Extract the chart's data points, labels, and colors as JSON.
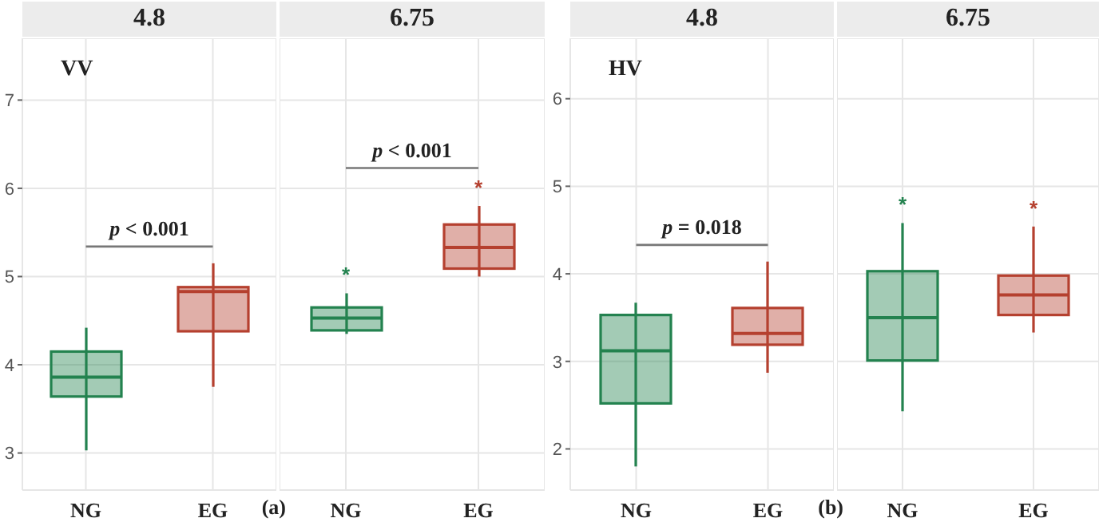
{
  "chart_data": [
    {
      "type": "box",
      "title": "4.8",
      "subtitle": "VV",
      "xlabel": "(a)",
      "categories": [
        "NG",
        "EG"
      ],
      "colors": [
        "#23824f",
        "#b5402f"
      ],
      "grid": true,
      "ylim": [
        2.58,
        7.7
      ],
      "yticks": [
        3,
        4,
        5,
        6,
        7
      ],
      "boxes": [
        {
          "low": 3.03,
          "q1": 3.64,
          "median": 3.86,
          "q3": 4.15,
          "high": 4.42
        },
        {
          "low": 3.75,
          "q1": 4.38,
          "median": 4.83,
          "q3": 4.88,
          "high": 5.15
        }
      ],
      "annotations": [
        "p < 0.001"
      ]
    },
    {
      "type": "box",
      "title": "6.75",
      "categories": [
        "NG",
        "EG"
      ],
      "colors": [
        "#23824f",
        "#b5402f"
      ],
      "grid": true,
      "ylim": [
        2.58,
        7.7
      ],
      "yticks": [
        3,
        4,
        5,
        6,
        7
      ],
      "tick_labels": "x",
      "boxes": [
        {
          "low": 4.35,
          "q1": 4.39,
          "median": 4.53,
          "q3": 4.65,
          "high": 4.81
        },
        {
          "low": 5.0,
          "q1": 5.09,
          "median": 5.33,
          "q3": 5.59,
          "high": 5.8
        }
      ],
      "annotations": [
        "*",
        "*",
        "p < 0.001"
      ]
    },
    {
      "type": "box",
      "title": "4.8",
      "subtitle": "HV",
      "xlabel": "(b)",
      "categories": [
        "NG",
        "EG"
      ],
      "colors": [
        "#23824f",
        "#b5402f"
      ],
      "grid": true,
      "ylim": [
        1.53,
        6.69
      ],
      "yticks": [
        2,
        3,
        4,
        5,
        6
      ],
      "boxes": [
        {
          "low": 1.8,
          "q1": 2.52,
          "median": 3.12,
          "q3": 3.53,
          "high": 3.67
        },
        {
          "low": 2.87,
          "q1": 3.19,
          "median": 3.32,
          "q3": 3.61,
          "high": 4.14
        }
      ],
      "annotations": [
        "p = 0.018"
      ]
    },
    {
      "type": "box",
      "title": "6.75",
      "categories": [
        "NG",
        "EG"
      ],
      "colors": [
        "#23824f",
        "#b5402f"
      ],
      "grid": true,
      "ylim": [
        1.53,
        6.69
      ],
      "yticks": [
        2,
        3,
        4,
        5,
        6
      ],
      "tick_labels": "x",
      "boxes": [
        {
          "low": 2.43,
          "q1": 3.01,
          "median": 3.5,
          "q3": 4.03,
          "high": 4.58
        },
        {
          "low": 3.33,
          "q1": 3.53,
          "median": 3.76,
          "q3": 3.98,
          "high": 4.54
        }
      ],
      "annotations": [
        "*",
        "*"
      ]
    }
  ]
}
